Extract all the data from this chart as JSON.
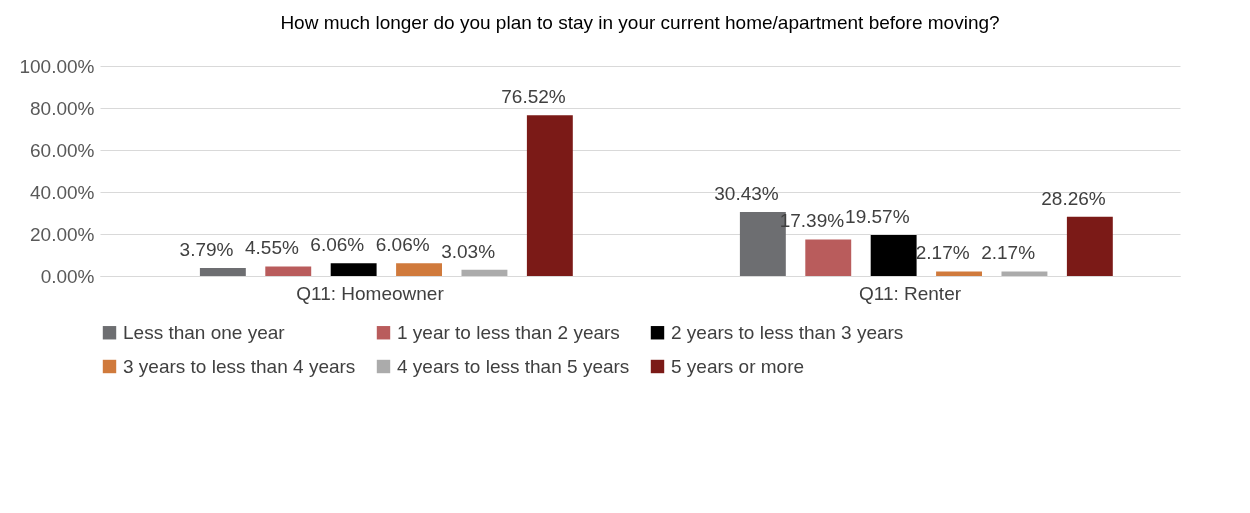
{
  "chart_data": {
    "type": "bar",
    "title": "How much longer do you plan to stay in your current home/apartment before moving?",
    "categories": [
      "Q11: Homeowner",
      "Q11: Renter"
    ],
    "series": [
      {
        "name": "Less than one year",
        "color": "#6d6e71",
        "values": [
          3.79,
          30.43
        ],
        "value_labels": [
          "3.79%",
          "30.43%"
        ]
      },
      {
        "name": "1 year to less than 2 years",
        "color": "#b95c5c",
        "values": [
          4.55,
          17.39
        ],
        "value_labels": [
          "4.55%",
          "17.39%"
        ]
      },
      {
        "name": "2 years to less than 3 years",
        "color": "#000000",
        "values": [
          6.06,
          19.57
        ],
        "value_labels": [
          "6.06%",
          "19.57%"
        ]
      },
      {
        "name": "3 years to less than 4 years",
        "color": "#d07a3c",
        "values": [
          6.06,
          2.17
        ],
        "value_labels": [
          "6.06%",
          "2.17%"
        ]
      },
      {
        "name": "4 years to less than 5 years",
        "color": "#ababab",
        "values": [
          3.03,
          2.17
        ],
        "value_labels": [
          "3.03%",
          "2.17%"
        ]
      },
      {
        "name": "5 years or more",
        "color": "#7b1a17",
        "values": [
          76.52,
          28.26
        ],
        "value_labels": [
          "76.52%",
          "28.26%"
        ]
      }
    ],
    "ylim": [
      0,
      100
    ],
    "yticks": [
      {
        "value": 0,
        "label": "0.00%"
      },
      {
        "value": 20,
        "label": "20.00%"
      },
      {
        "value": 40,
        "label": "40.00%"
      },
      {
        "value": 60,
        "label": "60.00%"
      },
      {
        "value": 80,
        "label": "80.00%"
      },
      {
        "value": 100,
        "label": "100.00%"
      }
    ],
    "grid": "y",
    "legend": "bottom"
  }
}
